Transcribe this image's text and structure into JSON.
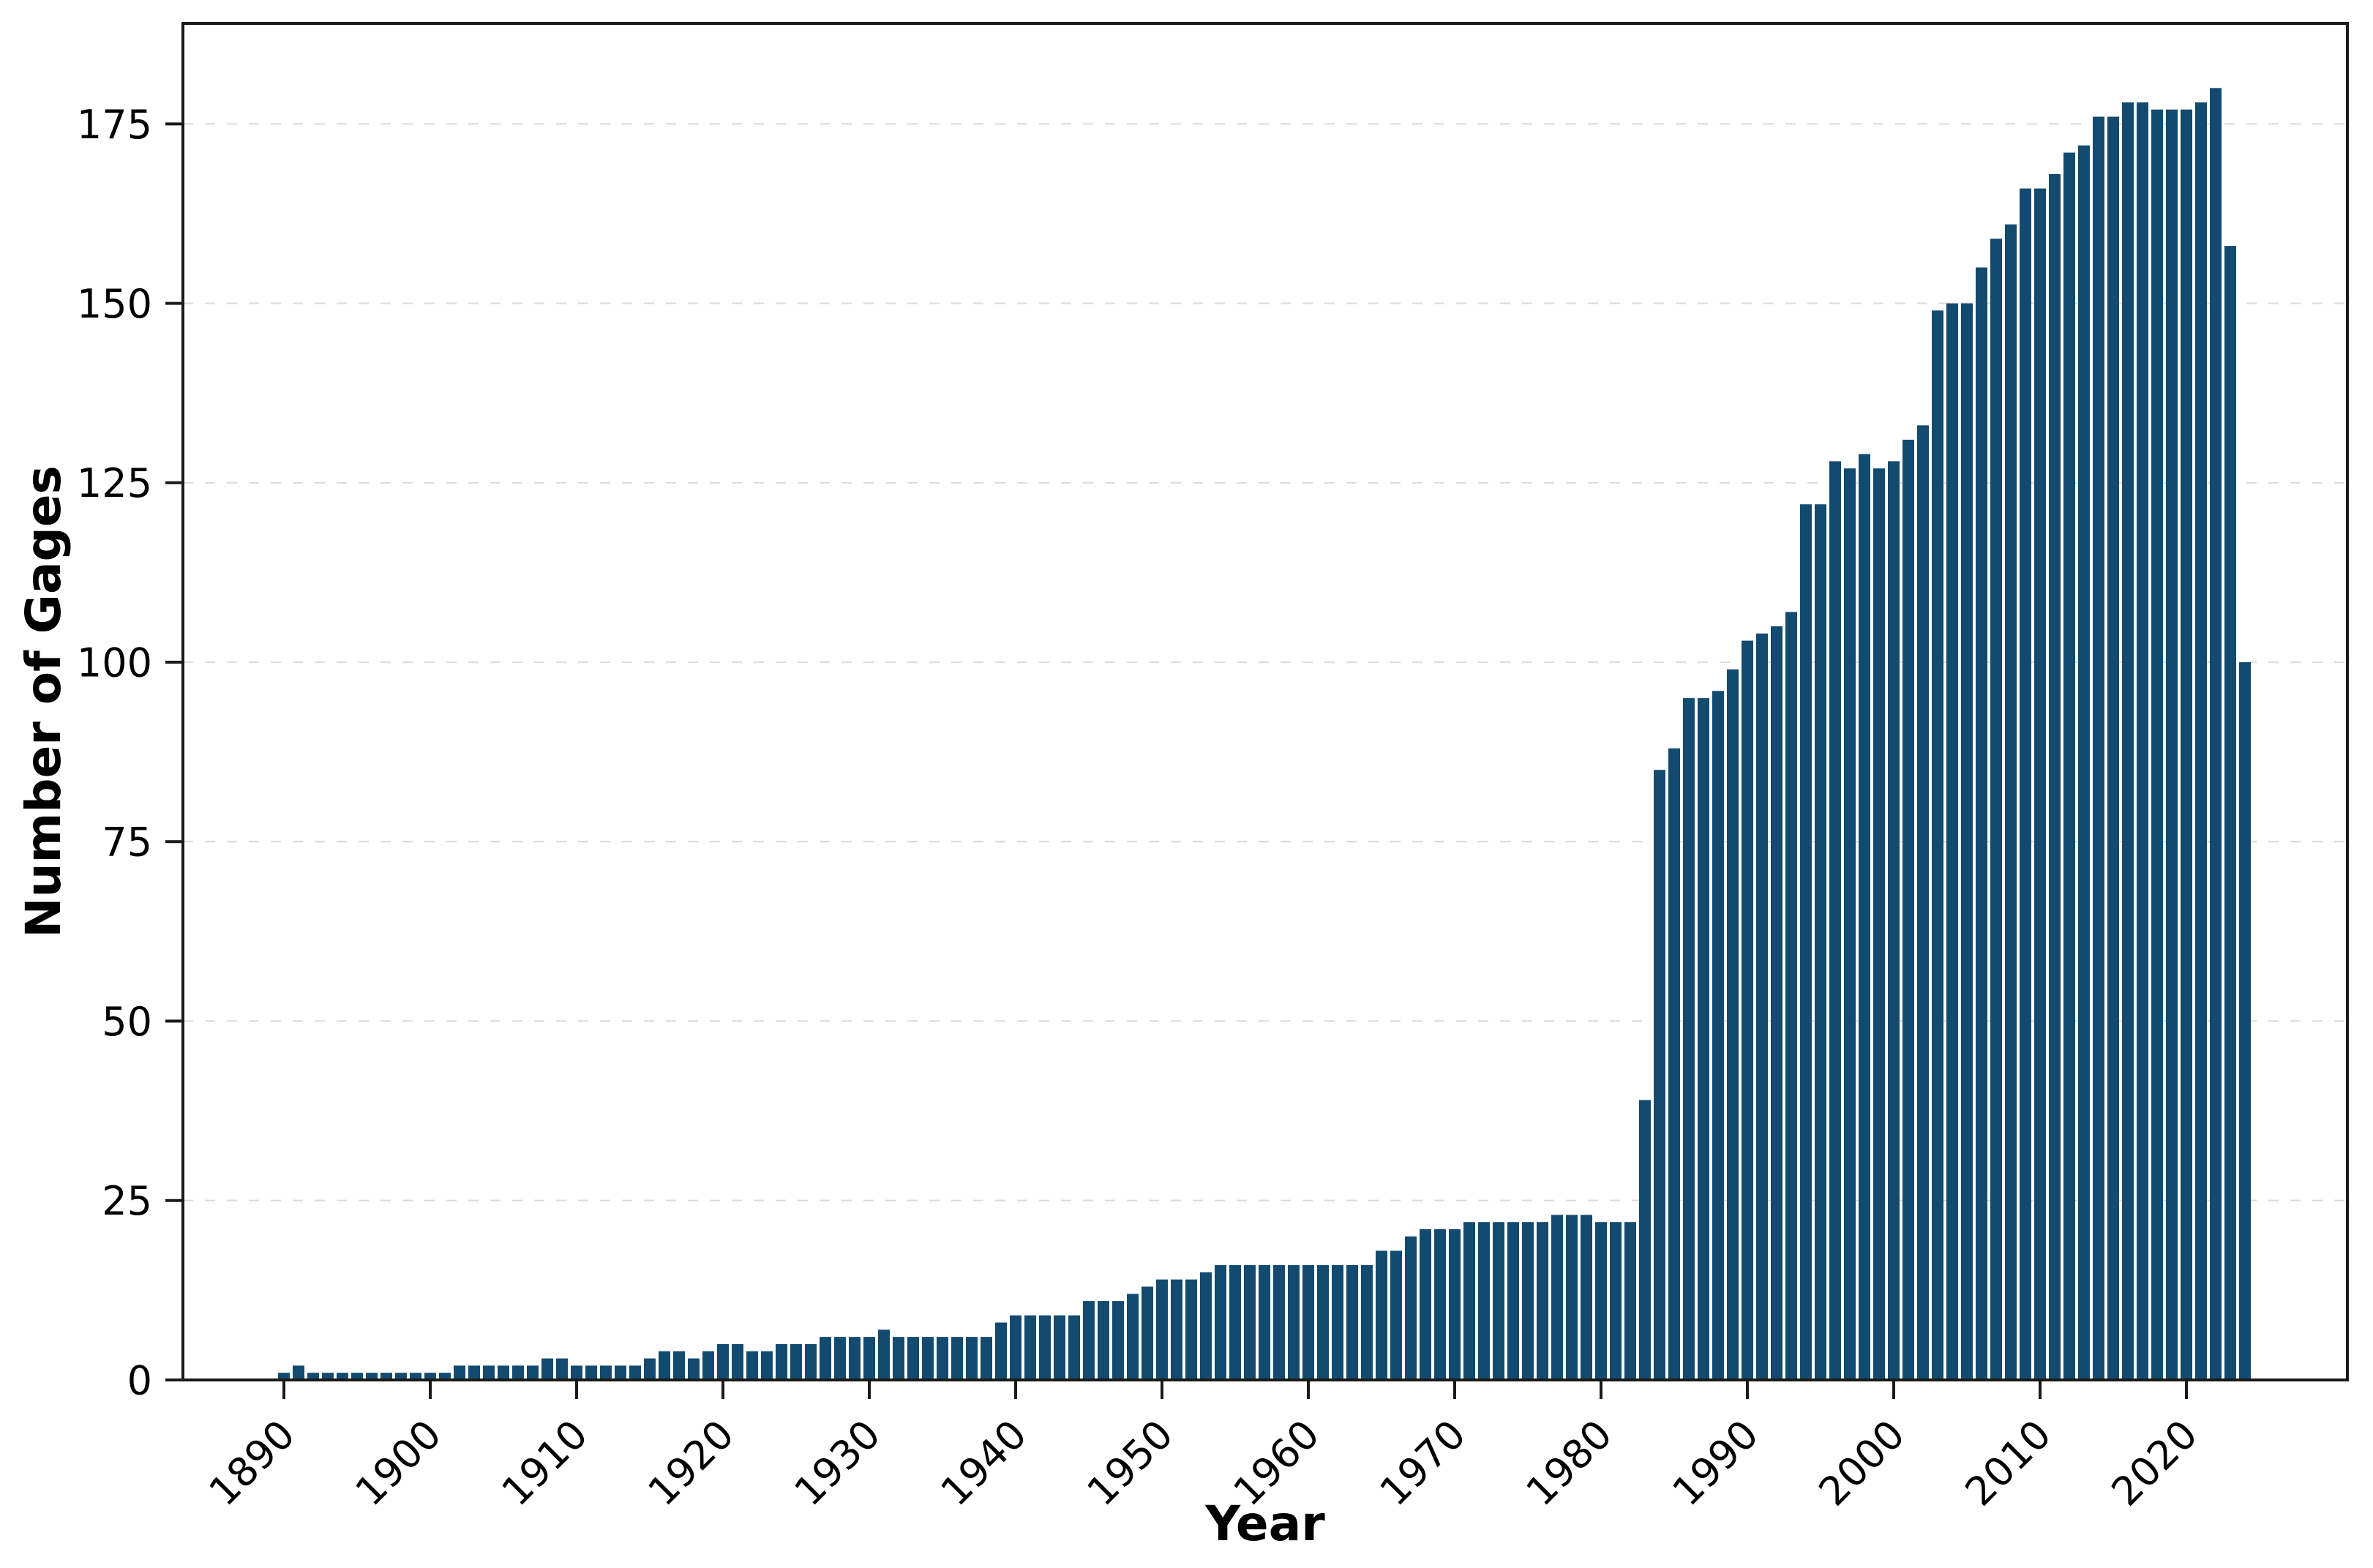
{
  "chart_data": {
    "type": "bar",
    "title": "",
    "xlabel": "Year",
    "ylabel": "Number of Gages",
    "years": [
      1890,
      1891,
      1892,
      1893,
      1894,
      1895,
      1896,
      1897,
      1898,
      1899,
      1900,
      1901,
      1902,
      1903,
      1904,
      1905,
      1906,
      1907,
      1908,
      1909,
      1910,
      1911,
      1912,
      1913,
      1914,
      1915,
      1916,
      1917,
      1918,
      1919,
      1920,
      1921,
      1922,
      1923,
      1924,
      1925,
      1926,
      1927,
      1928,
      1929,
      1930,
      1931,
      1932,
      1933,
      1934,
      1935,
      1936,
      1937,
      1938,
      1939,
      1940,
      1941,
      1942,
      1943,
      1944,
      1945,
      1946,
      1947,
      1948,
      1949,
      1950,
      1951,
      1952,
      1953,
      1954,
      1955,
      1956,
      1957,
      1958,
      1959,
      1960,
      1961,
      1962,
      1963,
      1964,
      1965,
      1966,
      1967,
      1968,
      1969,
      1970,
      1971,
      1972,
      1973,
      1974,
      1975,
      1976,
      1977,
      1978,
      1979,
      1980,
      1981,
      1982,
      1983,
      1984,
      1985,
      1986,
      1987,
      1988,
      1989,
      1990,
      1991,
      1992,
      1993,
      1994,
      1995,
      1996,
      1997,
      1998,
      1999,
      2000,
      2001,
      2002,
      2003,
      2004,
      2005,
      2006,
      2007,
      2008,
      2009,
      2010,
      2011,
      2012,
      2013,
      2014,
      2015,
      2016,
      2017,
      2018,
      2019,
      2020,
      2021,
      2022,
      2023,
      2024
    ],
    "values": [
      1,
      2,
      1,
      1,
      1,
      1,
      1,
      1,
      1,
      1,
      1,
      1,
      2,
      2,
      2,
      2,
      2,
      2,
      3,
      3,
      2,
      2,
      2,
      2,
      2,
      3,
      4,
      4,
      3,
      4,
      5,
      5,
      4,
      4,
      5,
      5,
      5,
      6,
      6,
      6,
      6,
      7,
      6,
      6,
      6,
      6,
      6,
      6,
      6,
      8,
      9,
      9,
      9,
      9,
      9,
      11,
      11,
      11,
      12,
      13,
      14,
      14,
      14,
      15,
      16,
      16,
      16,
      16,
      16,
      16,
      16,
      16,
      16,
      16,
      16,
      18,
      18,
      20,
      21,
      21,
      21,
      22,
      22,
      22,
      22,
      22,
      22,
      23,
      23,
      23,
      22,
      22,
      22,
      39,
      85,
      88,
      95,
      95,
      96,
      99,
      103,
      104,
      105,
      107,
      122,
      122,
      128,
      127,
      129,
      127,
      128,
      131,
      133,
      149,
      150,
      150,
      155,
      159,
      161,
      166,
      166,
      168,
      171,
      172,
      176,
      176,
      178,
      178,
      177,
      177,
      177,
      178,
      180,
      158,
      100
    ],
    "y_ticks": [
      0,
      25,
      50,
      75,
      100,
      125,
      150,
      175
    ],
    "x_ticks": [
      1890,
      1900,
      1910,
      1920,
      1930,
      1940,
      1950,
      1960,
      1970,
      1980,
      1990,
      2000,
      2010,
      2020
    ],
    "ylim": [
      0,
      189
    ],
    "bar_color": "#134A70",
    "grid_color": "#dcdcdc",
    "spine_color": "#1a1a1a",
    "grid": "horizontal-dashed",
    "legend": "none"
  }
}
